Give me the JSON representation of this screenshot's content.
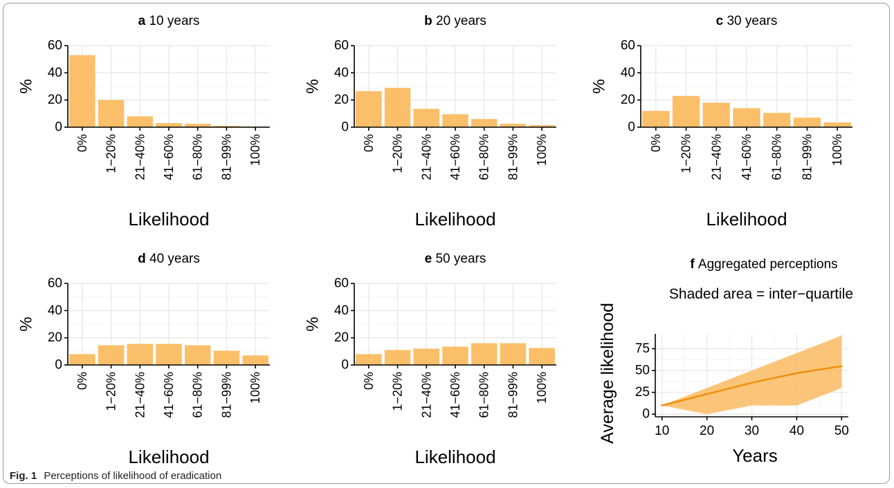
{
  "caption": {
    "label": "Fig. 1",
    "text": "Perceptions of likelihood of eradication"
  },
  "colors": {
    "bar": "#fbbf6a",
    "line": "#f0900f",
    "band": "#fbbf6a",
    "grid": "#ebebeb",
    "axis": "#000000"
  },
  "chart_data": [
    {
      "type": "bar",
      "panel": "a",
      "title": "10 years",
      "xlabel": "Likelihood",
      "ylabel": "%",
      "categories": [
        "0%",
        "1−20%",
        "21−40%",
        "41−60%",
        "61−80%",
        "81−99%",
        "100%"
      ],
      "values": [
        53,
        20,
        8,
        3,
        2.5,
        1,
        0.5
      ],
      "ylim": [
        0,
        60
      ],
      "yticks": [
        0,
        20,
        40,
        60
      ],
      "grid": true
    },
    {
      "type": "bar",
      "panel": "b",
      "title": "20 years",
      "xlabel": "Likelihood",
      "ylabel": "%",
      "categories": [
        "0%",
        "1−20%",
        "21−40%",
        "41−60%",
        "61−80%",
        "81−99%",
        "100%"
      ],
      "values": [
        26.5,
        29,
        13.5,
        9.5,
        6,
        2.5,
        1.5
      ],
      "ylim": [
        0,
        60
      ],
      "yticks": [
        0,
        20,
        40,
        60
      ],
      "grid": true
    },
    {
      "type": "bar",
      "panel": "c",
      "title": "30 years",
      "xlabel": "Likelihood",
      "ylabel": "%",
      "categories": [
        "0%",
        "1−20%",
        "21−40%",
        "41−60%",
        "61−80%",
        "81−99%",
        "100%"
      ],
      "values": [
        12,
        23,
        18,
        14,
        10.5,
        7,
        3.5
      ],
      "ylim": [
        0,
        60
      ],
      "yticks": [
        0,
        20,
        40,
        60
      ],
      "grid": true
    },
    {
      "type": "bar",
      "panel": "d",
      "title": "40 years",
      "xlabel": "Likelihood",
      "ylabel": "%",
      "categories": [
        "0%",
        "1−20%",
        "21−40%",
        "41−60%",
        "61−80%",
        "81−99%",
        "100%"
      ],
      "values": [
        8,
        14.5,
        15.5,
        15.5,
        14.5,
        10.5,
        7
      ],
      "ylim": [
        0,
        60
      ],
      "yticks": [
        0,
        20,
        40,
        60
      ],
      "grid": true
    },
    {
      "type": "bar",
      "panel": "e",
      "title": "50 years",
      "xlabel": "Likelihood",
      "ylabel": "%",
      "categories": [
        "0%",
        "1−20%",
        "21−40%",
        "41−60%",
        "61−80%",
        "81−99%",
        "100%"
      ],
      "values": [
        8,
        11,
        12,
        13.5,
        16,
        16,
        12.5
      ],
      "ylim": [
        0,
        60
      ],
      "yticks": [
        0,
        20,
        40,
        60
      ],
      "grid": true
    },
    {
      "type": "line",
      "panel": "f",
      "title": "Aggregated perceptions",
      "subtitle": "Shaded area = inter−quartile",
      "xlabel": "Years",
      "ylabel": "Average likelihood",
      "x": [
        10,
        20,
        30,
        40,
        50
      ],
      "series": [
        {
          "values": [
            10,
            23,
            36,
            47,
            55
          ],
          "lower": [
            10,
            0,
            10,
            10,
            30
          ],
          "upper": [
            10,
            30,
            50,
            70,
            90
          ]
        }
      ],
      "xlim": [
        8.5,
        51.5
      ],
      "ylim": [
        -3,
        92
      ],
      "xticks": [
        10,
        20,
        30,
        40,
        50
      ],
      "yticks": [
        0,
        25,
        50,
        75
      ],
      "grid": true
    }
  ]
}
